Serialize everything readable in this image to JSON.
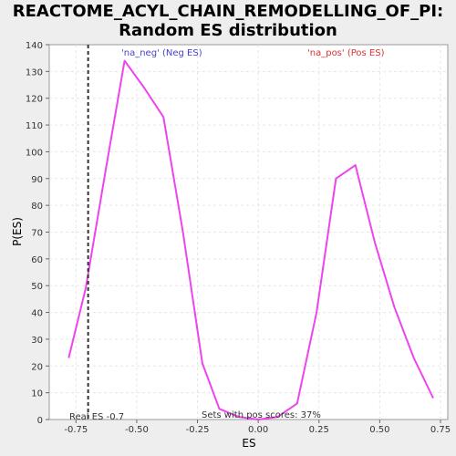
{
  "chart_data": {
    "type": "line",
    "title_lines": [
      "REACTOME_ACYL_CHAIN_REMODELLING_OF_PI:",
      "Random ES distribution"
    ],
    "xlabel": "ES",
    "ylabel": "P(ES)",
    "xlim": [
      -0.86,
      0.78
    ],
    "ylim": [
      0,
      140
    ],
    "x_ticks": [
      -0.75,
      -0.5,
      -0.25,
      0.0,
      0.25,
      0.5,
      0.75
    ],
    "x_tick_labels": [
      "-0.75",
      "-0.50",
      "-0.25",
      "0.00",
      "0.25",
      "0.50",
      "0.75"
    ],
    "y_ticks": [
      0,
      10,
      20,
      30,
      40,
      50,
      60,
      70,
      80,
      90,
      100,
      110,
      120,
      130,
      140
    ],
    "grid": true,
    "series": [
      {
        "color": "#ee44ee",
        "x": [
          -0.78,
          -0.71,
          -0.63,
          -0.55,
          -0.47,
          -0.39,
          -0.31,
          -0.23,
          -0.16,
          -0.08,
          0.0,
          0.08,
          0.16,
          0.24,
          0.32,
          0.4,
          0.48,
          0.56,
          0.64,
          0.72
        ],
        "y": [
          23,
          49,
          92,
          134,
          124,
          113,
          70,
          21,
          4,
          1,
          0,
          1,
          6,
          40,
          90,
          95,
          66,
          42,
          23,
          8
        ]
      }
    ],
    "real_es": {
      "x": -0.7,
      "label": "Real ES -0.7",
      "color": "#333333"
    },
    "annotations": {
      "neg": {
        "text": "'na_neg' (Neg ES)",
        "color": "#4444cc"
      },
      "pos": {
        "text": "'na_pos' (Pos ES)",
        "color": "#dd3333"
      },
      "sets_pos": "Sets with pos scores: 37%"
    }
  }
}
